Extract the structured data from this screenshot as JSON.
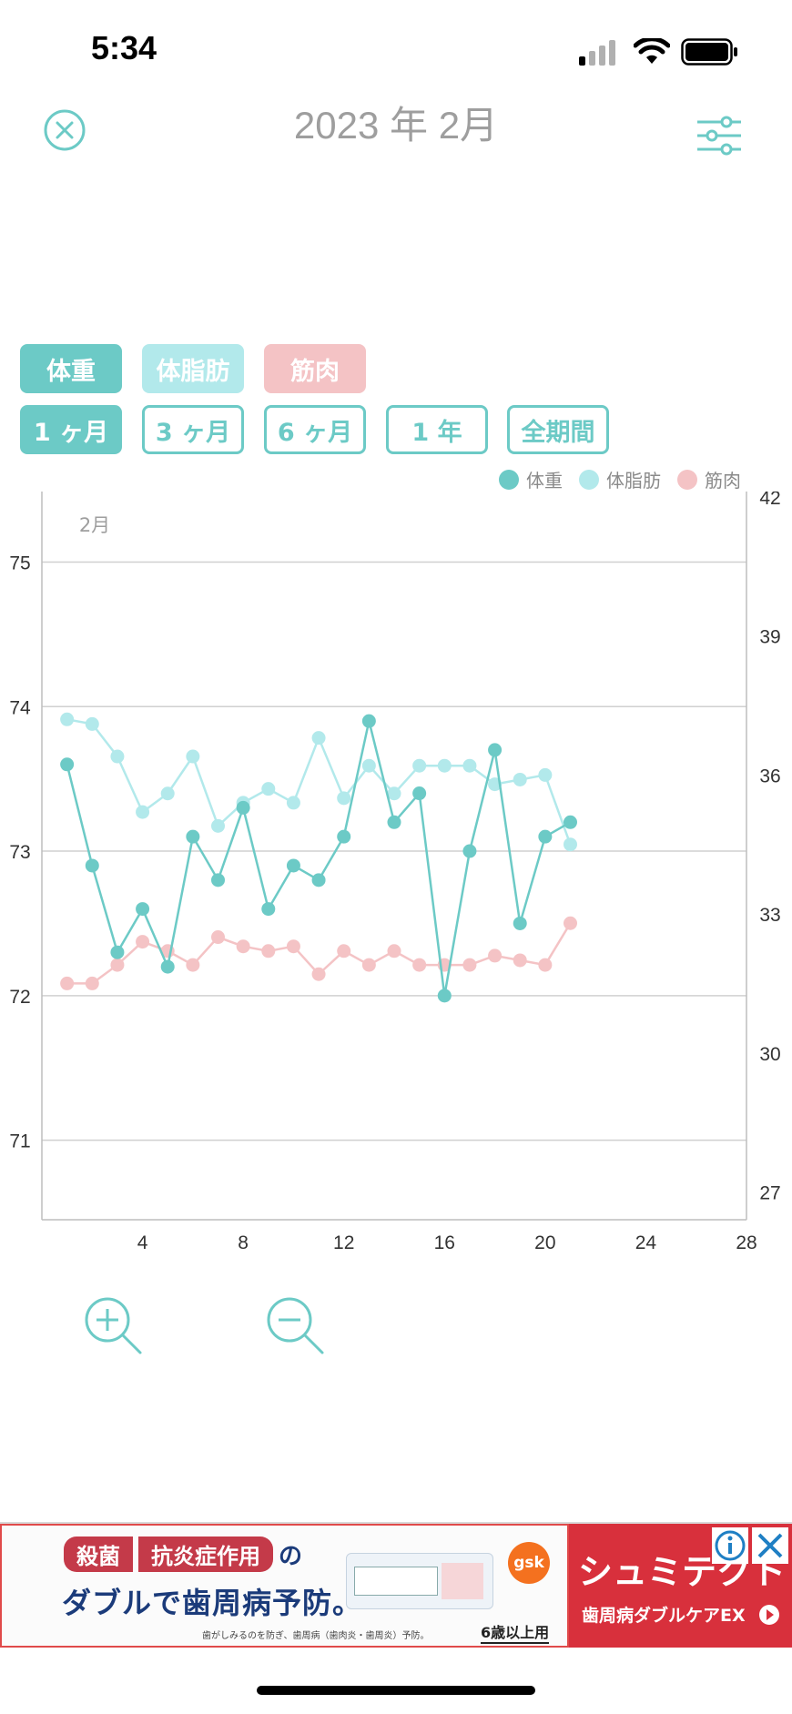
{
  "status_bar": {
    "time": "5:34"
  },
  "header": {
    "title": "2023 年 2月"
  },
  "metric_chips": [
    {
      "label": "体重"
    },
    {
      "label": "体脂肪"
    },
    {
      "label": "筋肉"
    }
  ],
  "period_chips": [
    {
      "label": "1 ヶ月",
      "selected": true
    },
    {
      "label": "3 ヶ月"
    },
    {
      "label": "6 ヶ月"
    },
    {
      "label": "1 年"
    },
    {
      "label": "全期間"
    }
  ],
  "legend": [
    {
      "label": "体重",
      "color": "#6ccac6"
    },
    {
      "label": "体脂肪",
      "color": "#b2e9eb"
    },
    {
      "label": "筋肉",
      "color": "#f4c3c5"
    }
  ],
  "chart_data": {
    "type": "line",
    "month_label": "2月",
    "x_ticks": [
      4,
      8,
      12,
      16,
      20,
      24,
      28
    ],
    "xlim": [
      0,
      28
    ],
    "left_axis": {
      "ticks": [
        71,
        72,
        73,
        74,
        75
      ],
      "ylim": [
        70.45,
        75.45
      ]
    },
    "right_axis": {
      "ticks": [
        27,
        30,
        33,
        36,
        39,
        42
      ],
      "ylim": [
        26.4,
        42.0
      ]
    },
    "series": [
      {
        "name": "体重",
        "axis": "left",
        "color": "#6ccac6",
        "x": [
          1,
          2,
          3,
          4,
          5,
          6,
          7,
          8,
          9,
          10,
          11,
          12,
          13,
          14,
          15,
          16,
          17,
          18,
          19,
          20,
          21
        ],
        "values": [
          73.6,
          72.9,
          72.3,
          72.6,
          72.2,
          73.1,
          72.8,
          73.3,
          72.6,
          72.9,
          72.8,
          73.1,
          73.9,
          73.2,
          73.4,
          72.0,
          73.0,
          73.7,
          72.5,
          73.1,
          73.2
        ]
      },
      {
        "name": "体脂肪",
        "axis": "right",
        "color": "#b2e9eb",
        "x": [
          1,
          2,
          3,
          4,
          5,
          6,
          7,
          8,
          9,
          10,
          11,
          12,
          13,
          14,
          15,
          16,
          17,
          18,
          19,
          20,
          21
        ],
        "values": [
          37.2,
          37.1,
          36.4,
          35.2,
          35.6,
          36.4,
          34.9,
          35.4,
          35.7,
          35.4,
          36.8,
          35.5,
          36.2,
          35.6,
          36.2,
          36.2,
          36.2,
          35.8,
          35.9,
          36.0,
          34.5
        ]
      },
      {
        "name": "筋肉",
        "axis": "right",
        "color": "#f4c3c5",
        "x": [
          1,
          2,
          3,
          4,
          5,
          6,
          7,
          8,
          9,
          10,
          11,
          12,
          13,
          14,
          15,
          16,
          17,
          18,
          19,
          20,
          21
        ],
        "values": [
          31.5,
          31.5,
          31.9,
          32.4,
          32.2,
          31.9,
          32.5,
          32.3,
          32.2,
          32.3,
          31.7,
          32.2,
          31.9,
          32.2,
          31.9,
          31.9,
          31.9,
          32.1,
          32.0,
          31.9,
          32.8
        ]
      }
    ]
  },
  "ad": {
    "line1a": "殺菌",
    "line1b": "抗炎症作用",
    "line1c": "の",
    "line2": "ダブルで歯周病予防。",
    "brand": "gsk",
    "age_note": "6歳以上用",
    "fine_print": "歯がしみるのを防ぎ、歯周病（歯肉炎・歯周炎）予防。",
    "product": "シュミテクト",
    "product_sub": "歯周病ダブルケアEX"
  }
}
